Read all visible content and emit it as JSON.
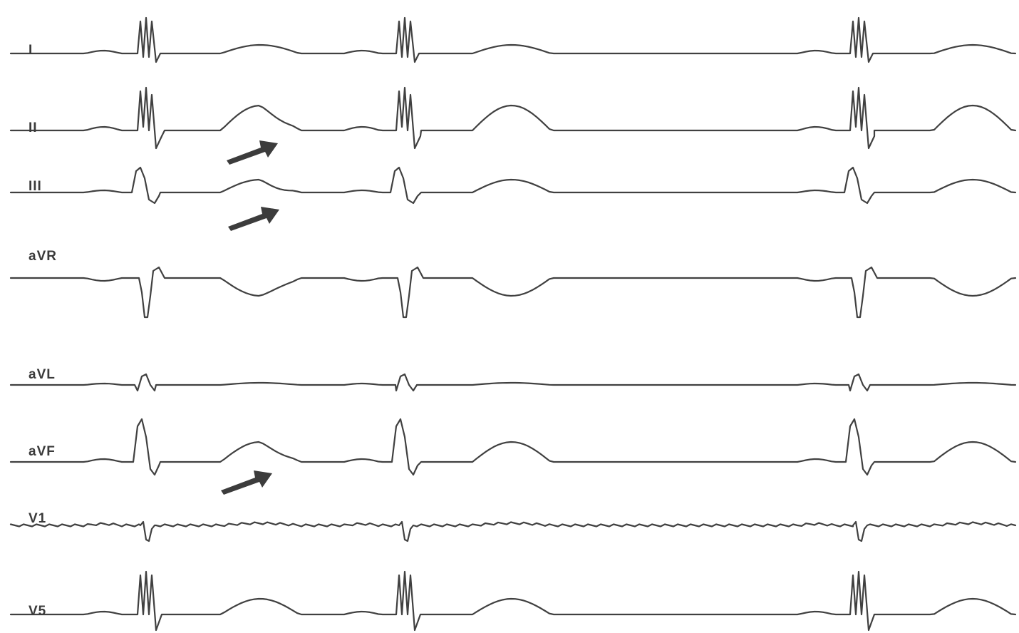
{
  "leads": [
    {
      "id": "I",
      "label": "I"
    },
    {
      "id": "II",
      "label": "II"
    },
    {
      "id": "III",
      "label": "III"
    },
    {
      "id": "aVR",
      "label": "aVR"
    },
    {
      "id": "aVL",
      "label": "aVL"
    },
    {
      "id": "aVF",
      "label": "aVF"
    },
    {
      "id": "V1",
      "label": "V1"
    },
    {
      "id": "V5",
      "label": "V5"
    }
  ],
  "arrows_marked_leads": [
    "II",
    "III",
    "aVF"
  ]
}
